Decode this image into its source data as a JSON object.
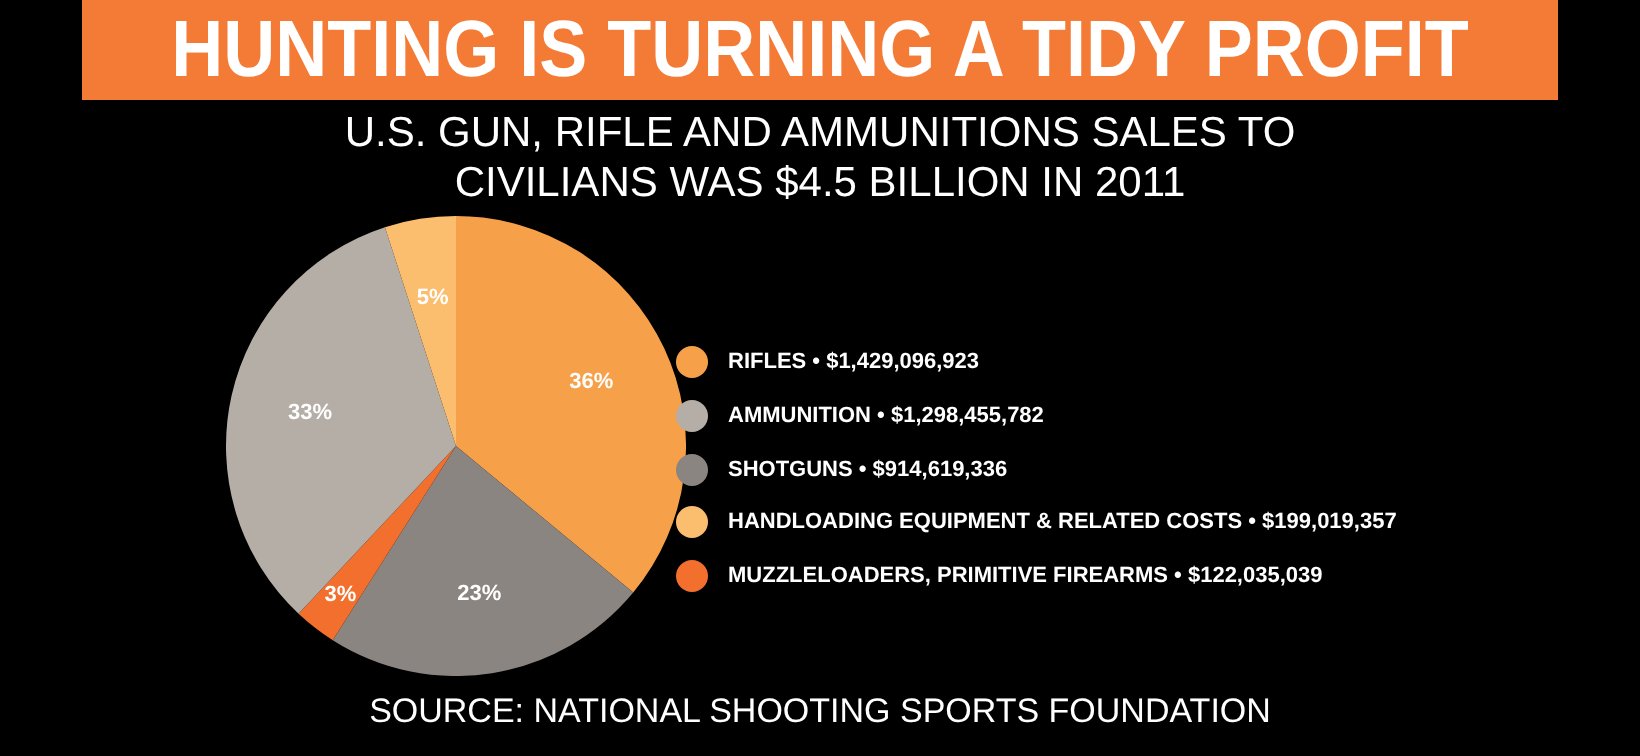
{
  "chart_data": {
    "type": "pie",
    "title": "HUNTING IS TURNING A TIDY PROFIT",
    "subtitle": "U.S. GUN, RIFLE AND AMMUNITIONS SALES TO CIVILIANS WAS $4.5 BILLION IN 2011",
    "categories": [
      "RIFLES • $1,429,096,923",
      "SHOTGUNS • $914,619,336",
      "MUZZLELOADERS, PRIMITIVE FIREARMS • $122,035,039",
      "AMMUNITION • $1,298,455,782",
      "HANDLOADING EQUIPMENT & RELATED COSTS • $199,019,357"
    ],
    "values": [
      36,
      23,
      3,
      33,
      5
    ],
    "value_labels": [
      "36%",
      "23%",
      "3%",
      "33%",
      "5%"
    ],
    "colors": [
      "#f7a04a",
      "#8a8580",
      "#f26f2d",
      "#b5aea6",
      "#fbbd6e"
    ],
    "legend": "right",
    "annotations": [
      "SOURCE: NATIONAL SHOOTING SPORTS FOUNDATION"
    ]
  }
}
